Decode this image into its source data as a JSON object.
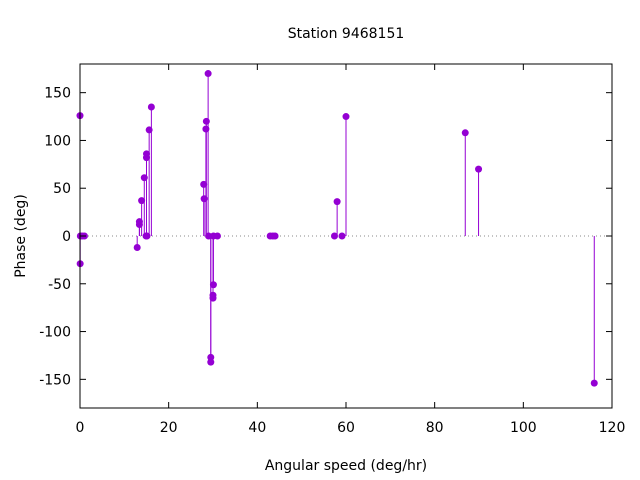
{
  "chart_data": {
    "type": "scatter",
    "style": "impulses-with-points",
    "title": "Station 9468151",
    "xlabel": "Angular speed (deg/hr)",
    "ylabel": "Phase (deg)",
    "xlim": [
      0,
      120
    ],
    "ylim": [
      -180,
      180
    ],
    "xticks": [
      0,
      20,
      40,
      60,
      80,
      100,
      120
    ],
    "yticks": [
      -150,
      -100,
      -50,
      0,
      50,
      100,
      150
    ],
    "zero_line": "dotted",
    "grid": false,
    "legend": "none",
    "color": "#9400d3",
    "points": [
      {
        "x": 0.0,
        "y": 126
      },
      {
        "x": 0.04,
        "y": -29
      },
      {
        "x": 0.08,
        "y": 0
      },
      {
        "x": 0.5,
        "y": 0
      },
      {
        "x": 1.0,
        "y": 0
      },
      {
        "x": 12.9,
        "y": -12
      },
      {
        "x": 13.4,
        "y": 12
      },
      {
        "x": 13.4,
        "y": 15
      },
      {
        "x": 13.9,
        "y": 37
      },
      {
        "x": 14.5,
        "y": 61
      },
      {
        "x": 14.9,
        "y": 0
      },
      {
        "x": 15.0,
        "y": 82
      },
      {
        "x": 15.0,
        "y": 86
      },
      {
        "x": 15.1,
        "y": 0
      },
      {
        "x": 15.6,
        "y": 111
      },
      {
        "x": 16.1,
        "y": 135
      },
      {
        "x": 27.9,
        "y": 54
      },
      {
        "x": 28.0,
        "y": 39
      },
      {
        "x": 28.4,
        "y": 112
      },
      {
        "x": 28.5,
        "y": 120
      },
      {
        "x": 28.9,
        "y": 170
      },
      {
        "x": 29.0,
        "y": 0
      },
      {
        "x": 29.5,
        "y": -132
      },
      {
        "x": 29.5,
        "y": -127
      },
      {
        "x": 30.0,
        "y": -65
      },
      {
        "x": 30.0,
        "y": -62
      },
      {
        "x": 30.1,
        "y": 0
      },
      {
        "x": 30.1,
        "y": -51
      },
      {
        "x": 31.0,
        "y": 0
      },
      {
        "x": 42.9,
        "y": 0
      },
      {
        "x": 43.5,
        "y": 0
      },
      {
        "x": 44.0,
        "y": 0
      },
      {
        "x": 57.4,
        "y": 0
      },
      {
        "x": 58.0,
        "y": 36
      },
      {
        "x": 59.1,
        "y": 0
      },
      {
        "x": 60.0,
        "y": 125
      },
      {
        "x": 86.9,
        "y": 108
      },
      {
        "x": 89.9,
        "y": 70
      },
      {
        "x": 116.0,
        "y": -154
      }
    ]
  }
}
